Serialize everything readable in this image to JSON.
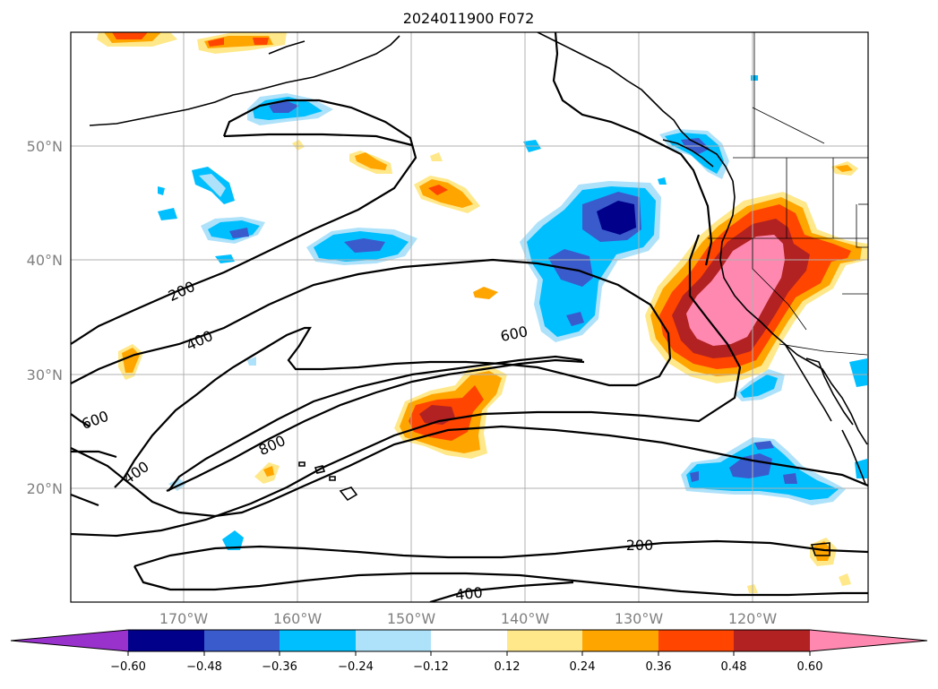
{
  "title": "2024011900 F072",
  "lat_labels": [
    "50°N",
    "40°N",
    "30°N",
    "20°N"
  ],
  "lon_labels": [
    "170°W",
    "160°W",
    "150°W",
    "140°W",
    "130°W",
    "120°W"
  ],
  "contour_labels": [
    "200",
    "400",
    "600",
    "600",
    "800",
    "400",
    "200",
    "400"
  ],
  "colorbar": {
    "ticks": [
      "−0.60",
      "−0.48",
      "−0.36",
      "−0.24",
      "−0.12",
      "0.12",
      "0.24",
      "0.36",
      "0.48",
      "0.60"
    ],
    "colors": {
      "below": "#9932cc",
      "n060": "#00008b",
      "n048": "#3a5bcc",
      "n036": "#00bfff",
      "n024": "#aee2fa",
      "zero": "#ffffff",
      "p012": "#ffe88a",
      "p024": "#ffa500",
      "p036": "#ff4500",
      "p048": "#b22222",
      "above": "#ff88b0"
    }
  }
}
